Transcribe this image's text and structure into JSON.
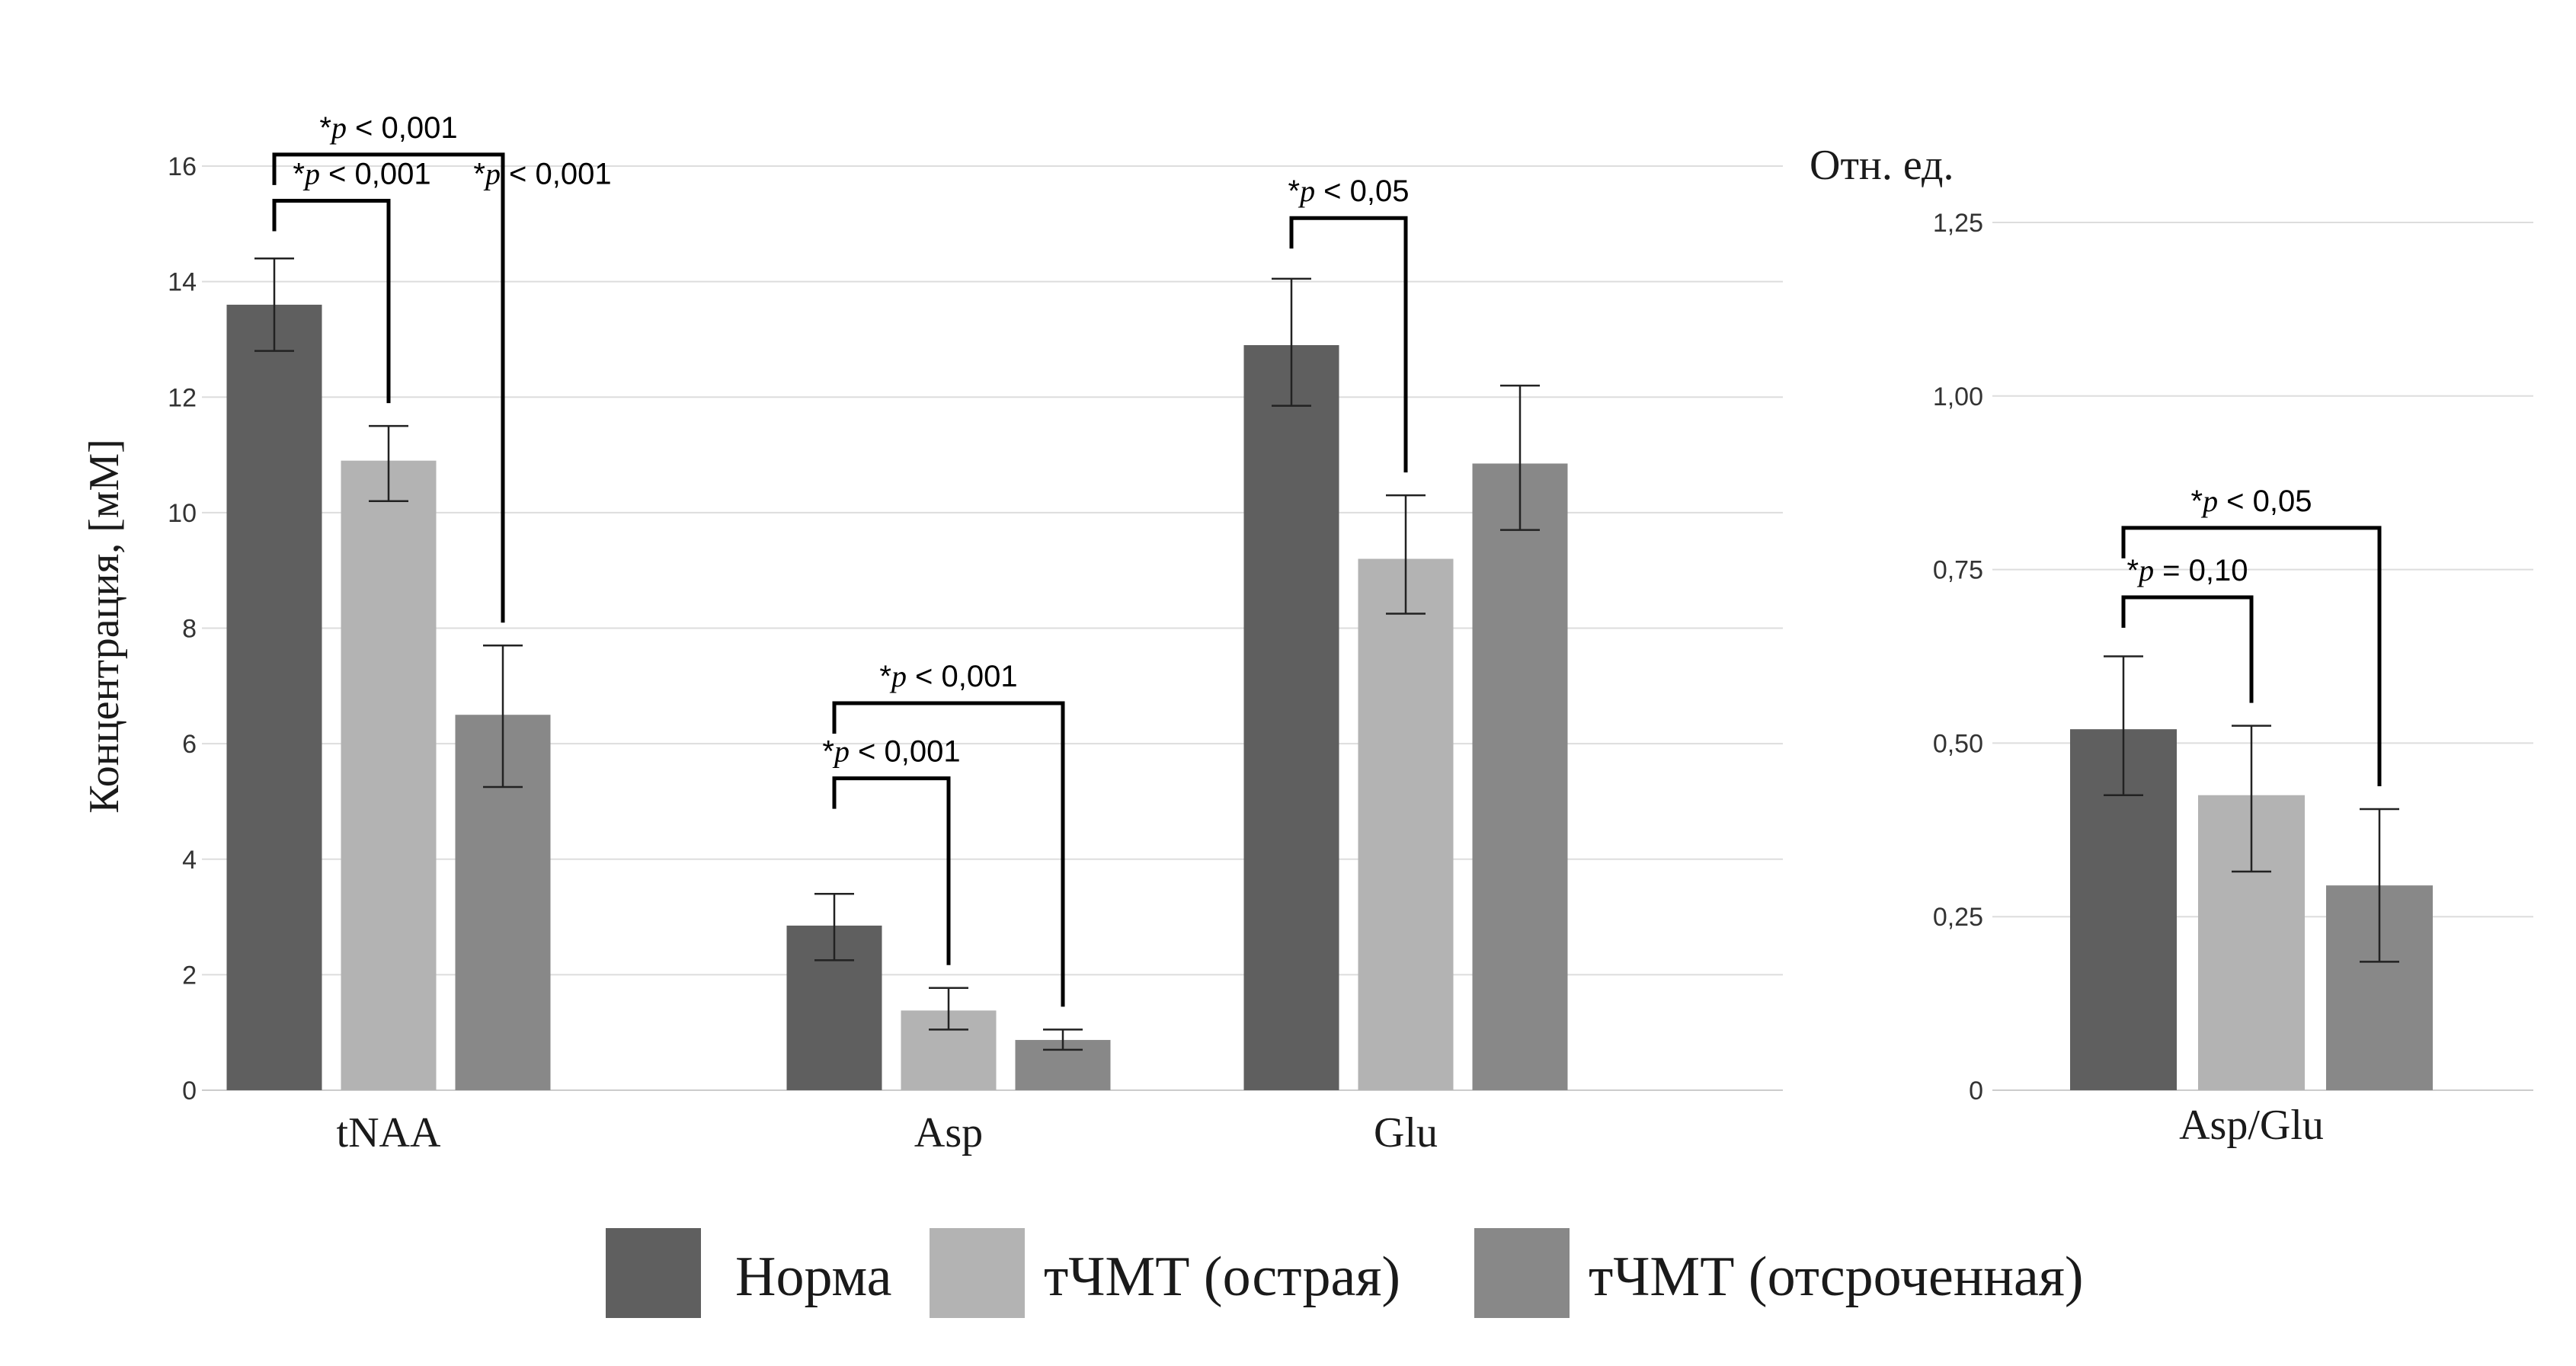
{
  "chart_data": [
    {
      "type": "bar",
      "ylabel": "Концентрация, [мМ]",
      "ylim": [
        0,
        16
      ],
      "yticks": [
        0,
        2,
        4,
        6,
        8,
        10,
        12,
        14,
        16
      ],
      "ytick_labels": [
        "0",
        "2",
        "4",
        "6",
        "8",
        "10",
        "12",
        "14",
        "16"
      ],
      "categories": [
        "tNAA",
        "Asp",
        "Glu"
      ],
      "series": [
        {
          "name": "Норма",
          "values": [
            13.6,
            2.85,
            12.9
          ],
          "err_low": [
            12.8,
            2.25,
            11.85
          ],
          "err_high": [
            14.4,
            3.4,
            14.05
          ]
        },
        {
          "name": "тЧМТ (острая)",
          "values": [
            10.9,
            1.38,
            9.2
          ],
          "err_low": [
            10.2,
            1.05,
            8.25
          ],
          "err_high": [
            11.5,
            1.77,
            10.3
          ]
        },
        {
          "name": "тЧМТ (отсроченная)",
          "values": [
            6.5,
            0.87,
            10.85
          ],
          "err_low": [
            5.25,
            0.7,
            9.7
          ],
          "err_high": [
            7.7,
            1.05,
            12.2
          ]
        }
      ],
      "annotations": [
        {
          "category": 0,
          "from": 0,
          "to": 2,
          "text": "*p < 0,001",
          "top": 16.2
        },
        {
          "category": 0,
          "from": 0,
          "to": 1,
          "text": "*p < 0,001",
          "top": 15.4
        },
        {
          "category": 0,
          "from": 0,
          "to": 2,
          "text": "*p < 0,001",
          "top": 15.4,
          "label_only": true
        },
        {
          "category": 1,
          "from": 0,
          "to": 2,
          "text": "*p < 0,001",
          "top": 6.7
        },
        {
          "category": 1,
          "from": 0,
          "to": 1,
          "text": "*p < 0,001",
          "top": 5.4
        },
        {
          "category": 2,
          "from": 0,
          "to": 1,
          "text": "*p < 0,05",
          "top": 15.1
        }
      ],
      "grid": true
    },
    {
      "type": "bar",
      "ylabel": "Отн. ед.",
      "ylim": [
        0,
        1.25
      ],
      "yticks": [
        0,
        0.25,
        0.5,
        0.75,
        1.0,
        1.25
      ],
      "ytick_labels": [
        "0",
        "0,25",
        "0,50",
        "0,75",
        "1,00",
        "1,25"
      ],
      "categories": [
        "Asp/Glu"
      ],
      "series": [
        {
          "name": "Норма",
          "values": [
            0.52
          ],
          "err_low": [
            0.425
          ],
          "err_high": [
            0.625
          ]
        },
        {
          "name": "тЧМТ (острая)",
          "values": [
            0.425
          ],
          "err_low": [
            0.315
          ],
          "err_high": [
            0.525
          ]
        },
        {
          "name": "тЧМТ (отсроченная)",
          "values": [
            0.295
          ],
          "err_low": [
            0.185
          ],
          "err_high": [
            0.405
          ]
        }
      ],
      "annotations": [
        {
          "category": 0,
          "from": 0,
          "to": 2,
          "text": "*p < 0,05",
          "top": 0.81
        },
        {
          "category": 0,
          "from": 0,
          "to": 1,
          "text": "*p = 0,10",
          "top": 0.71
        }
      ],
      "grid": true
    }
  ],
  "legend": {
    "placement": "bottom",
    "items": [
      {
        "label": "Норма",
        "color": "#5f5f5f"
      },
      {
        "label": "тЧМТ (острая)",
        "color": "#b3b3b3"
      },
      {
        "label": "тЧМТ (отсроченная)",
        "color": "#888888"
      }
    ]
  },
  "colors": {
    "norm": "#5f5f5f",
    "acute": "#b3b3b3",
    "delayed": "#888888",
    "grid": "#dddddd"
  }
}
